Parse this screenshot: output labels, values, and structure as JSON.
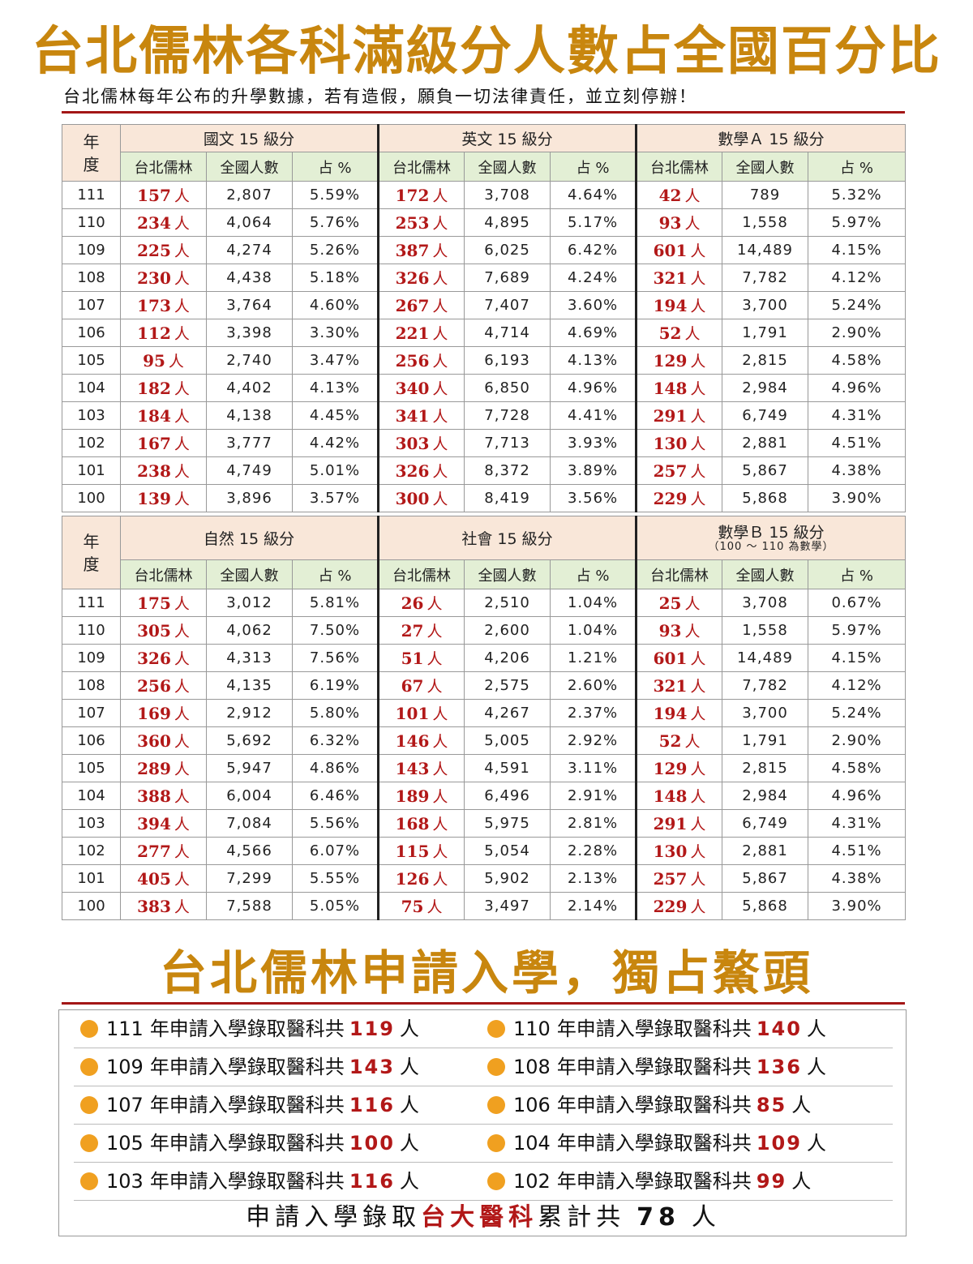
{
  "title": "台北儒林各科滿級分人數占全國百分比",
  "subtitle": "台北儒林每年公布的升學數據，若有造假，願負一切法律責任，並立刻停辦！",
  "year_header": "年度",
  "unit": "人",
  "sub_headers": [
    "台北儒林",
    "全國人數",
    "占 %"
  ],
  "table1": {
    "subjects": [
      {
        "name": "國文 15 級分"
      },
      {
        "name": "英文 15 級分"
      },
      {
        "name": "數學Ａ 15 級分"
      }
    ],
    "rows": [
      {
        "year": "111",
        "cells": [
          [
            "157",
            "2,807",
            "5.59%"
          ],
          [
            "172",
            "3,708",
            "4.64%"
          ],
          [
            "42",
            "789",
            "5.32%"
          ]
        ]
      },
      {
        "year": "110",
        "cells": [
          [
            "234",
            "4,064",
            "5.76%"
          ],
          [
            "253",
            "4,895",
            "5.17%"
          ],
          [
            "93",
            "1,558",
            "5.97%"
          ]
        ]
      },
      {
        "year": "109",
        "cells": [
          [
            "225",
            "4,274",
            "5.26%"
          ],
          [
            "387",
            "6,025",
            "6.42%"
          ],
          [
            "601",
            "14,489",
            "4.15%"
          ]
        ]
      },
      {
        "year": "108",
        "cells": [
          [
            "230",
            "4,438",
            "5.18%"
          ],
          [
            "326",
            "7,689",
            "4.24%"
          ],
          [
            "321",
            "7,782",
            "4.12%"
          ]
        ]
      },
      {
        "year": "107",
        "cells": [
          [
            "173",
            "3,764",
            "4.60%"
          ],
          [
            "267",
            "7,407",
            "3.60%"
          ],
          [
            "194",
            "3,700",
            "5.24%"
          ]
        ]
      },
      {
        "year": "106",
        "cells": [
          [
            "112",
            "3,398",
            "3.30%"
          ],
          [
            "221",
            "4,714",
            "4.69%"
          ],
          [
            "52",
            "1,791",
            "2.90%"
          ]
        ]
      },
      {
        "year": "105",
        "cells": [
          [
            "95",
            "2,740",
            "3.47%"
          ],
          [
            "256",
            "6,193",
            "4.13%"
          ],
          [
            "129",
            "2,815",
            "4.58%"
          ]
        ]
      },
      {
        "year": "104",
        "cells": [
          [
            "182",
            "4,402",
            "4.13%"
          ],
          [
            "340",
            "6,850",
            "4.96%"
          ],
          [
            "148",
            "2,984",
            "4.96%"
          ]
        ]
      },
      {
        "year": "103",
        "cells": [
          [
            "184",
            "4,138",
            "4.45%"
          ],
          [
            "341",
            "7,728",
            "4.41%"
          ],
          [
            "291",
            "6,749",
            "4.31%"
          ]
        ]
      },
      {
        "year": "102",
        "cells": [
          [
            "167",
            "3,777",
            "4.42%"
          ],
          [
            "303",
            "7,713",
            "3.93%"
          ],
          [
            "130",
            "2,881",
            "4.51%"
          ]
        ]
      },
      {
        "year": "101",
        "cells": [
          [
            "238",
            "4,749",
            "5.01%"
          ],
          [
            "326",
            "8,372",
            "3.89%"
          ],
          [
            "257",
            "5,867",
            "4.38%"
          ]
        ]
      },
      {
        "year": "100",
        "cells": [
          [
            "139",
            "3,896",
            "3.57%"
          ],
          [
            "300",
            "8,419",
            "3.56%"
          ],
          [
            "229",
            "5,868",
            "3.90%"
          ]
        ]
      }
    ]
  },
  "table2": {
    "subjects": [
      {
        "name": "自然 15 級分"
      },
      {
        "name": "社會 15 級分"
      },
      {
        "name": "數學Ｂ 15 級分",
        "note": "（100 ～ 110 為數學）"
      }
    ],
    "rows": [
      {
        "year": "111",
        "cells": [
          [
            "175",
            "3,012",
            "5.81%"
          ],
          [
            "26",
            "2,510",
            "1.04%"
          ],
          [
            "25",
            "3,708",
            "0.67%"
          ]
        ]
      },
      {
        "year": "110",
        "cells": [
          [
            "305",
            "4,062",
            "7.50%"
          ],
          [
            "27",
            "2,600",
            "1.04%"
          ],
          [
            "93",
            "1,558",
            "5.97%"
          ]
        ]
      },
      {
        "year": "109",
        "cells": [
          [
            "326",
            "4,313",
            "7.56%"
          ],
          [
            "51",
            "4,206",
            "1.21%"
          ],
          [
            "601",
            "14,489",
            "4.15%"
          ]
        ]
      },
      {
        "year": "108",
        "cells": [
          [
            "256",
            "4,135",
            "6.19%"
          ],
          [
            "67",
            "2,575",
            "2.60%"
          ],
          [
            "321",
            "7,782",
            "4.12%"
          ]
        ]
      },
      {
        "year": "107",
        "cells": [
          [
            "169",
            "2,912",
            "5.80%"
          ],
          [
            "101",
            "4,267",
            "2.37%"
          ],
          [
            "194",
            "3,700",
            "5.24%"
          ]
        ]
      },
      {
        "year": "106",
        "cells": [
          [
            "360",
            "5,692",
            "6.32%"
          ],
          [
            "146",
            "5,005",
            "2.92%"
          ],
          [
            "52",
            "1,791",
            "2.90%"
          ]
        ]
      },
      {
        "year": "105",
        "cells": [
          [
            "289",
            "5,947",
            "4.86%"
          ],
          [
            "143",
            "4,591",
            "3.11%"
          ],
          [
            "129",
            "2,815",
            "4.58%"
          ]
        ]
      },
      {
        "year": "104",
        "cells": [
          [
            "388",
            "6,004",
            "6.46%"
          ],
          [
            "189",
            "6,496",
            "2.91%"
          ],
          [
            "148",
            "2,984",
            "4.96%"
          ]
        ]
      },
      {
        "year": "103",
        "cells": [
          [
            "394",
            "7,084",
            "5.56%"
          ],
          [
            "168",
            "5,975",
            "2.81%"
          ],
          [
            "291",
            "6,749",
            "4.31%"
          ]
        ]
      },
      {
        "year": "102",
        "cells": [
          [
            "277",
            "4,566",
            "6.07%"
          ],
          [
            "115",
            "5,054",
            "2.28%"
          ],
          [
            "130",
            "2,881",
            "4.51%"
          ]
        ]
      },
      {
        "year": "101",
        "cells": [
          [
            "405",
            "7,299",
            "5.55%"
          ],
          [
            "126",
            "5,902",
            "2.13%"
          ],
          [
            "257",
            "5,867",
            "4.38%"
          ]
        ]
      },
      {
        "year": "100",
        "cells": [
          [
            "383",
            "7,588",
            "5.05%"
          ],
          [
            "75",
            "3,497",
            "2.14%"
          ],
          [
            "229",
            "5,868",
            "3.90%"
          ]
        ]
      }
    ]
  },
  "section2_title": "台北儒林申請入學，獨占鰲頭",
  "admission_label": "年申請入學錄取醫科共",
  "admissions": [
    {
      "year": "111",
      "count": "119"
    },
    {
      "year": "110",
      "count": "140"
    },
    {
      "year": "109",
      "count": "143"
    },
    {
      "year": "108",
      "count": "136"
    },
    {
      "year": "107",
      "count": "116"
    },
    {
      "year": "106",
      "count": "85"
    },
    {
      "year": "105",
      "count": "100"
    },
    {
      "year": "104",
      "count": "109"
    },
    {
      "year": "103",
      "count": "116"
    },
    {
      "year": "102",
      "count": "99"
    }
  ],
  "summary": {
    "prefix": "申請入學錄取",
    "highlight": "台大醫科",
    "middle": "累計共",
    "total": "78",
    "unit": "人"
  },
  "colors": {
    "title": "#c8860e",
    "institution_red": "#b21818",
    "header_peach": "#f9e7d9",
    "header_green": "#e3efd5",
    "bullet_orange": "#f0a020",
    "rule_red": "#a31616"
  }
}
